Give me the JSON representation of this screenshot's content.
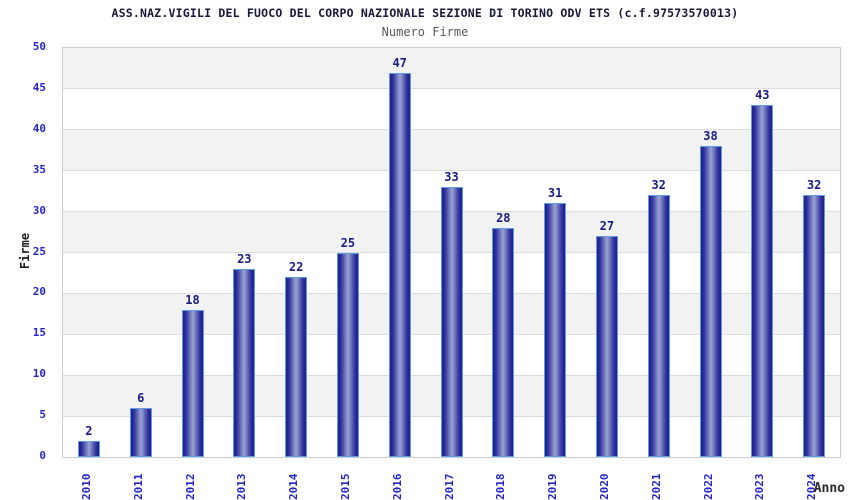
{
  "header": {
    "title": "ASS.NAZ.VIGILI DEL FUOCO DEL CORPO NAZIONALE SEZIONE DI TORINO ODV ETS (c.f.97573570013)",
    "subtitle": "Numero Firme"
  },
  "chart_data": {
    "type": "bar",
    "title": "ASS.NAZ.VIGILI DEL FUOCO DEL CORPO NAZIONALE SEZIONE DI TORINO ODV ETS (c.f.97573570013)",
    "subtitle": "Numero Firme",
    "categories": [
      "2010",
      "2011",
      "2012",
      "2013",
      "2014",
      "2015",
      "2016",
      "2017",
      "2018",
      "2019",
      "2020",
      "2021",
      "2022",
      "2023",
      "2024"
    ],
    "values": [
      2,
      6,
      18,
      23,
      22,
      25,
      47,
      33,
      28,
      31,
      27,
      32,
      38,
      43,
      32
    ],
    "xlabel": "Anno",
    "ylabel": "Firme",
    "ylim": [
      0,
      50
    ],
    "ytick_step": 5,
    "yticks": [
      0,
      5,
      10,
      15,
      20,
      25,
      30,
      35,
      40,
      45,
      50
    ],
    "grid": true,
    "legend_position": "none",
    "background_bands": "alternating gray/white horizontal stripes every 5 units",
    "colors": {
      "bar_fill_edge": "#1f1f8c",
      "bar_fill_center": "#9ba5d3",
      "bar_border": "#5f9de2",
      "band_gray": "#f2f2f2",
      "gridline": "#dcdcdc",
      "axis_tick_label": "#2626c8",
      "value_label": "#1a1a85",
      "title": "#181838",
      "subtitle": "#5a5a5a",
      "axis_title": "#1c1c1c"
    }
  }
}
